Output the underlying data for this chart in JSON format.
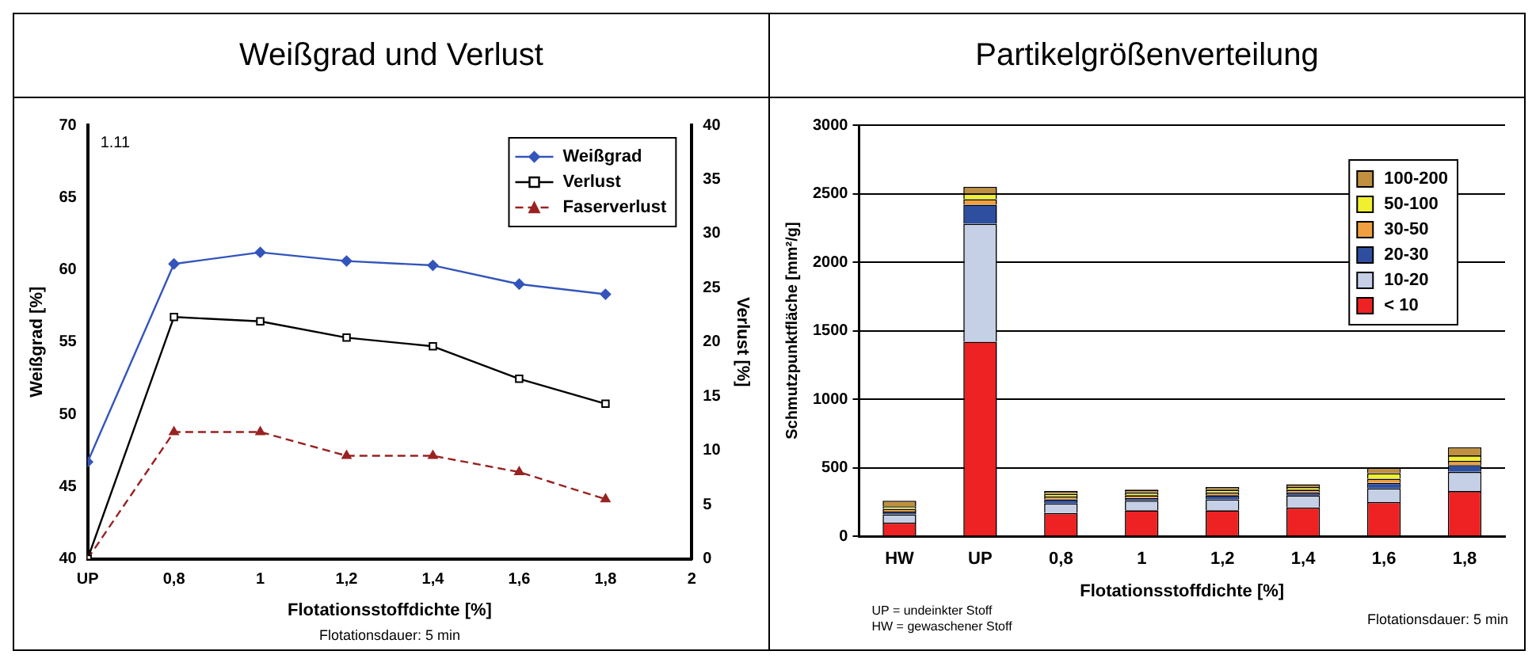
{
  "chart_data": [
    {
      "type": "line",
      "title": "Weißgrad und Verlust",
      "xlabel": "Flotationsstoffdichte [%]",
      "ylabel": "Weißgrad [%]",
      "y2label": "Verlust [%]",
      "x": [
        0.6,
        0.8,
        1,
        1.2,
        1.4,
        1.6,
        1.8
      ],
      "series": [
        {
          "name": "Weißgrad",
          "color": "#3355bb",
          "values": [
            46.7,
            60.4,
            61.2,
            60.6,
            60.3,
            59.0,
            58.3
          ],
          "marker": "diamond",
          "line_style": "solid"
        },
        {
          "name": "Verlust",
          "color": "#000000",
          "values": [
            0,
            22.3,
            21.9,
            20.4,
            19.6,
            16.6,
            14.3
          ],
          "axis": "y2",
          "marker": "square",
          "line_style": "solid"
        },
        {
          "name": "Faserverlust",
          "color": "#992222",
          "values": [
            0,
            11.7,
            11.7,
            9.5,
            9.5,
            8.0,
            5.5
          ],
          "axis": "y2",
          "marker": "triangle",
          "line_style": "dashed"
        }
      ],
      "xlim": [
        0.6,
        2
      ],
      "xticks": [
        {
          "value": 0.6,
          "label": "UP"
        },
        {
          "value": 0.8,
          "label": "0,8"
        },
        1,
        {
          "value": 1.2,
          "label": "1,2"
        },
        {
          "value": 1.4,
          "label": "1,4"
        },
        {
          "value": 1.6,
          "label": "1,6"
        },
        {
          "value": 1.8,
          "label": "1,8"
        },
        2
      ],
      "ylim": [
        40,
        70
      ],
      "yticks": [
        40,
        45,
        50,
        55,
        60,
        65,
        70
      ],
      "y2lim": [
        0,
        40
      ],
      "y2ticks": [
        0,
        5,
        10,
        15,
        20,
        25,
        30,
        35,
        40
      ],
      "grid": false,
      "legend": "top right",
      "annotations": [
        "1.11",
        "Flotationsdauer: 5 min"
      ]
    },
    {
      "type": "bar",
      "title": "Partikelgrößenverteilung",
      "xlabel": "Flotationsstoffdichte [%]",
      "ylabel": "Schmutzpunktfläche [mm²/g]",
      "categories": [
        "HW",
        "UP",
        "0,8",
        "1",
        "1,2",
        "1,4",
        "1,6",
        "1,8"
      ],
      "stacked": true,
      "series": [
        {
          "name": "< 10",
          "color": "#ee2222",
          "values": [
            100,
            1420,
            170,
            190,
            190,
            210,
            250,
            330
          ]
        },
        {
          "name": "10-20",
          "color": "#c5d0e6",
          "values": [
            60,
            860,
            70,
            70,
            80,
            90,
            100,
            140
          ]
        },
        {
          "name": "20-30",
          "color": "#2e4fa0",
          "values": [
            20,
            140,
            30,
            20,
            30,
            20,
            40,
            50
          ]
        },
        {
          "name": "30-50",
          "color": "#f0a040",
          "values": [
            20,
            40,
            20,
            20,
            20,
            20,
            30,
            30
          ]
        },
        {
          "name": "50-100",
          "color": "#f0f030",
          "values": [
            20,
            40,
            20,
            20,
            20,
            20,
            40,
            40
          ]
        },
        {
          "name": "100-200",
          "color": "#c09040",
          "values": [
            40,
            50,
            20,
            20,
            20,
            20,
            40,
            60
          ]
        }
      ],
      "ylim": [
        0,
        3000
      ],
      "yticks": [
        0,
        500,
        1000,
        1500,
        2000,
        2500,
        3000
      ],
      "grid": "y",
      "legend": "top right",
      "annotations": [
        "UP = undeinkter Stoff",
        "HW = gewaschener Stoff",
        "Flotationsdauer: 5 min"
      ]
    }
  ]
}
